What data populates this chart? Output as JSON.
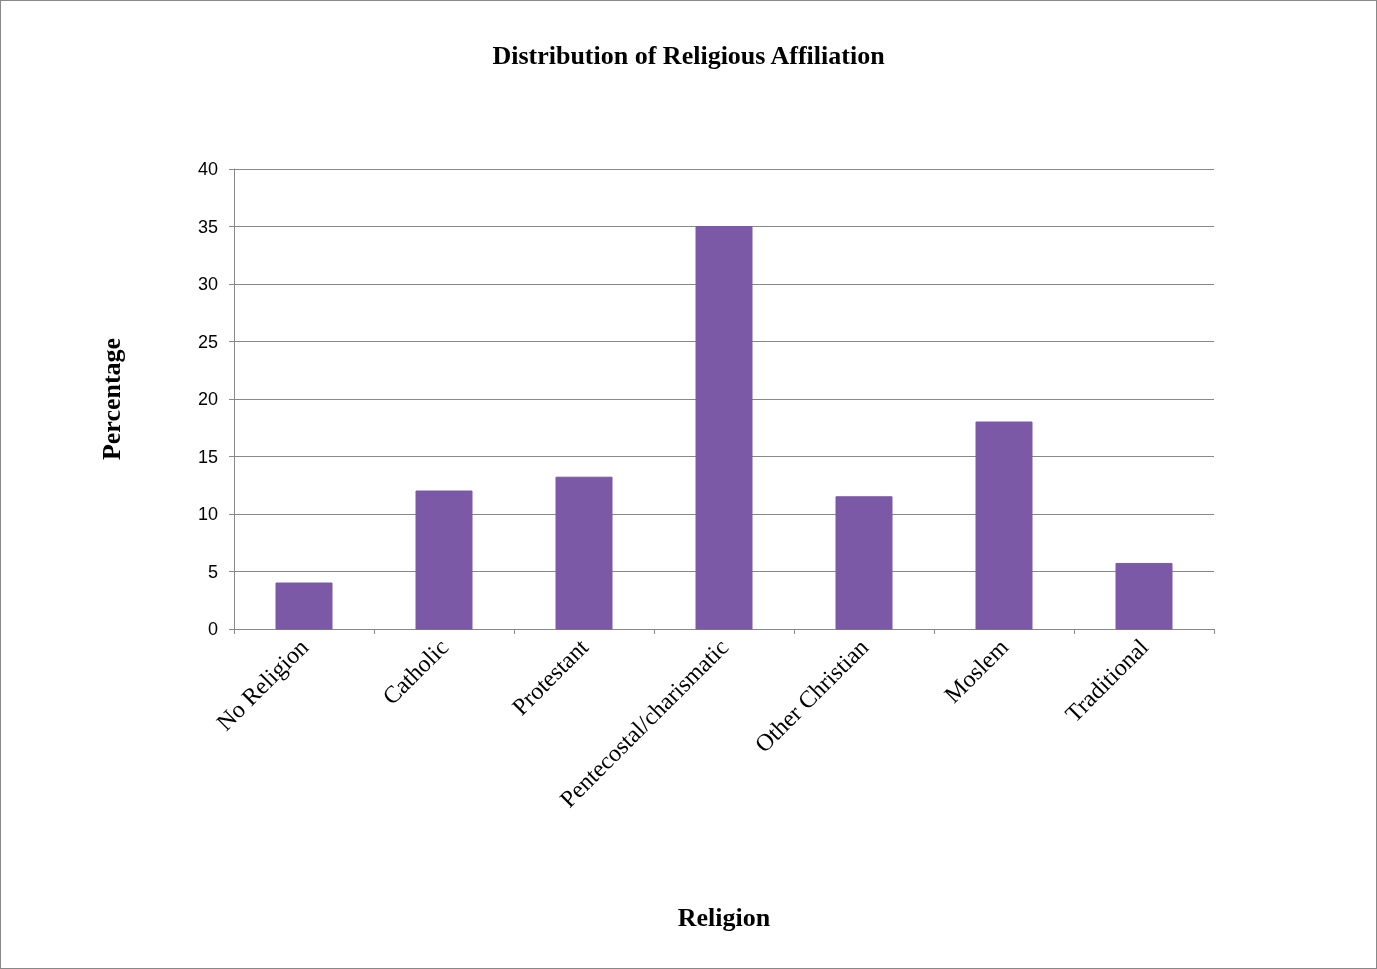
{
  "chart_data": {
    "type": "bar",
    "title": "Distribution of Religious Affiliation",
    "xlabel": "Religion",
    "ylabel": "Percentage",
    "categories": [
      "No Religion",
      "Catholic",
      "Protestant",
      "Pentecostal/charismatic",
      "Other Christian",
      "Moslem",
      "Traditional"
    ],
    "values": [
      4,
      12,
      13.2,
      35,
      11.5,
      18,
      5.7
    ],
    "color": "#7b59a6",
    "ylim": [
      0,
      40
    ],
    "yticks": [
      0,
      5,
      10,
      15,
      20,
      25,
      30,
      35,
      40
    ],
    "grid": "y"
  }
}
